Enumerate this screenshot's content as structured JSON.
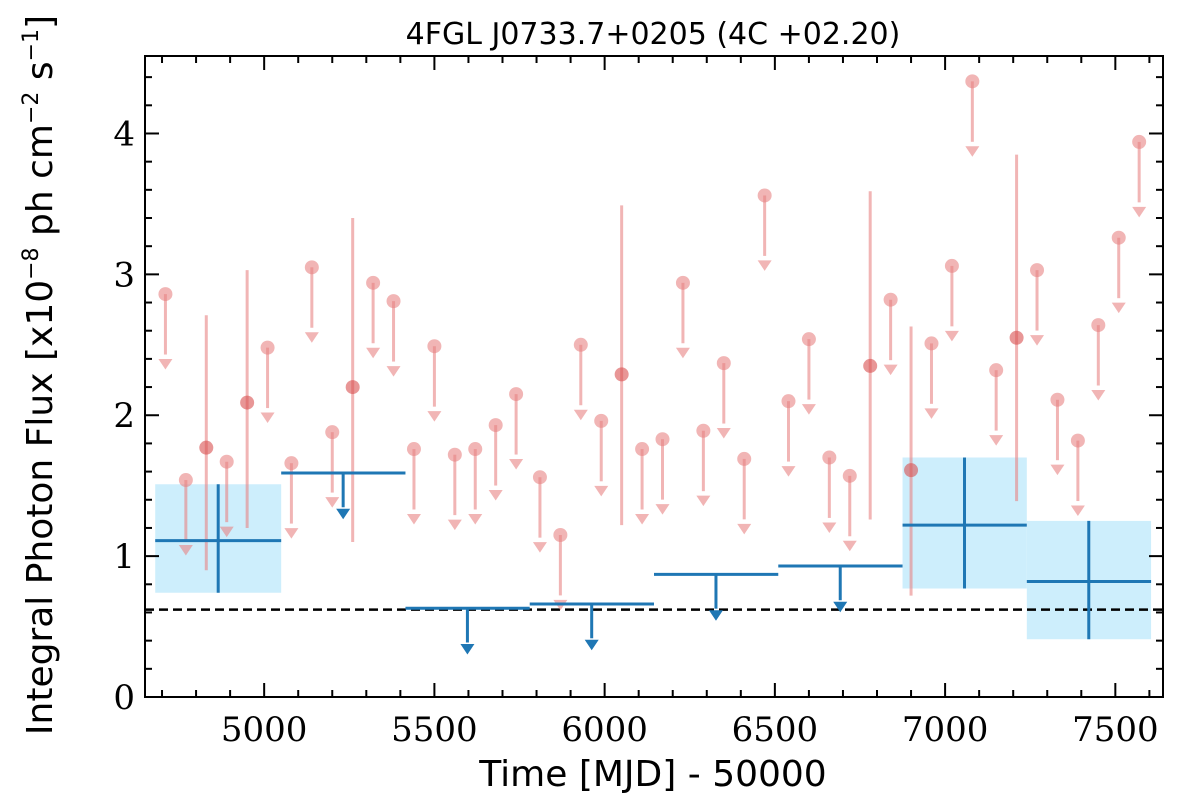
{
  "chart_data": {
    "type": "scatter",
    "title": "4FGL J0733.7+0205 (4C +02.20)",
    "xlabel": "Time [MJD] - 50000",
    "ylabel": "Integral Photon Flux [x10",
    "ylabel_exp1": "−8",
    "ylabel_mid": " ph cm",
    "ylabel_exp2": "−2",
    "ylabel_s": " s",
    "ylabel_exp3": "−1",
    "ylabel_end": "]",
    "xlim": [
      4650,
      7640
    ],
    "ylim": [
      0,
      4.55
    ],
    "x_ticks": [
      5000,
      5500,
      6000,
      6500,
      7000,
      7500
    ],
    "x_tick_labels": [
      "5000",
      "5500",
      "6000",
      "6500",
      "7000",
      "7500"
    ],
    "y_ticks": [
      0,
      1,
      2,
      3,
      4
    ],
    "y_tick_labels": [
      "0",
      "1",
      "2",
      "3",
      "4"
    ],
    "reference_line": {
      "y": 0.62,
      "style": "dashed",
      "color": "#000000"
    },
    "colors": {
      "short_bins": "#e88484",
      "long_bins": "#1f77b4",
      "long_bins_band": "#cdeefc"
    },
    "series": [
      {
        "points": [
          {
            "x": 4710,
            "y": 2.86,
            "ul": true
          },
          {
            "x": 4770,
            "y": 1.54,
            "ul": true
          },
          {
            "x": 4830,
            "y": 1.77,
            "lo": 0.9,
            "hi": 2.71
          },
          {
            "x": 4890,
            "y": 1.67,
            "ul": true
          },
          {
            "x": 4950,
            "y": 2.09,
            "lo": 1.2,
            "hi": 3.03
          },
          {
            "x": 5010,
            "y": 2.48,
            "ul": true
          },
          {
            "x": 5080,
            "y": 1.66,
            "ul": true
          },
          {
            "x": 5140,
            "y": 3.05,
            "ul": true
          },
          {
            "x": 5200,
            "y": 1.88,
            "ul": true
          },
          {
            "x": 5260,
            "y": 2.2,
            "lo": 1.1,
            "hi": 3.4
          },
          {
            "x": 5320,
            "y": 2.94,
            "ul": true
          },
          {
            "x": 5380,
            "y": 2.81,
            "ul": true
          },
          {
            "x": 5440,
            "y": 1.76,
            "ul": true
          },
          {
            "x": 5500,
            "y": 2.49,
            "ul": true
          },
          {
            "x": 5560,
            "y": 1.72,
            "ul": true
          },
          {
            "x": 5620,
            "y": 1.76,
            "ul": true
          },
          {
            "x": 5680,
            "y": 1.93,
            "ul": true
          },
          {
            "x": 5740,
            "y": 2.15,
            "ul": true
          },
          {
            "x": 5810,
            "y": 1.56,
            "ul": true
          },
          {
            "x": 5870,
            "y": 1.15,
            "ul": true
          },
          {
            "x": 5930,
            "y": 2.5,
            "ul": true
          },
          {
            "x": 5990,
            "y": 1.96,
            "ul": true
          },
          {
            "x": 6050,
            "y": 2.29,
            "lo": 1.22,
            "hi": 3.49
          },
          {
            "x": 6110,
            "y": 1.76,
            "ul": true
          },
          {
            "x": 6170,
            "y": 1.83,
            "ul": true
          },
          {
            "x": 6230,
            "y": 2.94,
            "ul": true
          },
          {
            "x": 6290,
            "y": 1.89,
            "ul": true
          },
          {
            "x": 6350,
            "y": 2.37,
            "ul": true
          },
          {
            "x": 6410,
            "y": 1.69,
            "ul": true
          },
          {
            "x": 6470,
            "y": 3.56,
            "ul": true
          },
          {
            "x": 6540,
            "y": 2.1,
            "ul": true
          },
          {
            "x": 6600,
            "y": 2.54,
            "ul": true
          },
          {
            "x": 6660,
            "y": 1.7,
            "ul": true
          },
          {
            "x": 6720,
            "y": 1.57,
            "ul": true
          },
          {
            "x": 6780,
            "y": 2.35,
            "lo": 1.26,
            "hi": 3.59
          },
          {
            "x": 6840,
            "y": 2.82,
            "ul": true
          },
          {
            "x": 6900,
            "y": 1.61,
            "lo": 0.72,
            "hi": 2.63
          },
          {
            "x": 6960,
            "y": 2.51,
            "ul": true
          },
          {
            "x": 7020,
            "y": 3.06,
            "ul": true
          },
          {
            "x": 7080,
            "y": 4.37,
            "ul": true
          },
          {
            "x": 7150,
            "y": 2.32,
            "ul": true
          },
          {
            "x": 7210,
            "y": 2.55,
            "lo": 1.39,
            "hi": 3.85
          },
          {
            "x": 7270,
            "y": 3.03,
            "ul": true
          },
          {
            "x": 7330,
            "y": 2.11,
            "ul": true
          },
          {
            "x": 7390,
            "y": 1.82,
            "ul": true
          },
          {
            "x": 7450,
            "y": 2.64,
            "ul": true
          },
          {
            "x": 7510,
            "y": 3.26,
            "ul": true
          },
          {
            "x": 7570,
            "y": 3.94,
            "ul": true
          }
        ]
      },
      {
        "bins": [
          {
            "x0": 4680,
            "x1": 5050,
            "xc": 4865,
            "y": 1.11,
            "lo": 0.74,
            "hi": 1.51,
            "ul": false
          },
          {
            "x0": 5050,
            "x1": 5415,
            "xc": 5232,
            "y": 1.59,
            "ul": true
          },
          {
            "x0": 5415,
            "x1": 5780,
            "xc": 5597,
            "y": 0.63,
            "ul": true
          },
          {
            "x0": 5780,
            "x1": 6145,
            "xc": 5962,
            "y": 0.66,
            "ul": true
          },
          {
            "x0": 6145,
            "x1": 6510,
            "xc": 6327,
            "y": 0.87,
            "ul": true
          },
          {
            "x0": 6510,
            "x1": 6875,
            "xc": 6692,
            "y": 0.93,
            "ul": true
          },
          {
            "x0": 6875,
            "x1": 7240,
            "xc": 7057,
            "y": 1.22,
            "lo": 0.77,
            "hi": 1.7,
            "ul": false
          },
          {
            "x0": 7240,
            "x1": 7605,
            "xc": 7422,
            "y": 0.82,
            "lo": 0.41,
            "hi": 1.25,
            "ul": false
          }
        ]
      }
    ]
  }
}
